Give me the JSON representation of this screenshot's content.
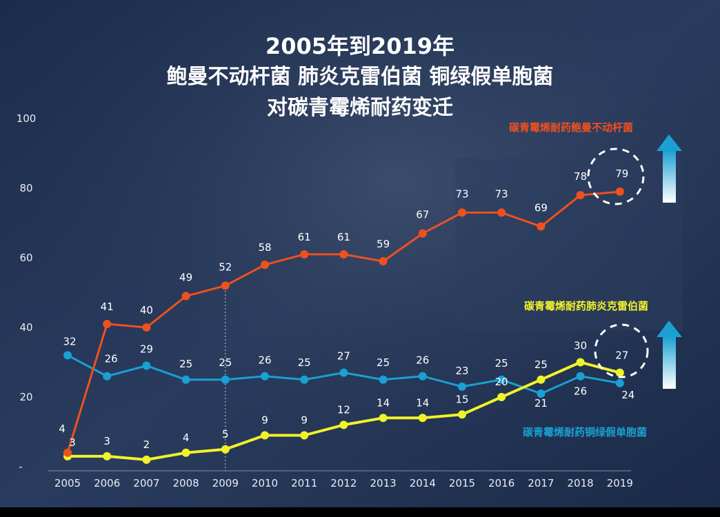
{
  "title": {
    "line1": "2005年到2019年",
    "line2": "鲍曼不动杆菌  肺炎克雷伯菌  铜绿假单胞菌",
    "line3": "对碳青霉烯耐药变迁"
  },
  "colors": {
    "acinetobacter": "#f0501e",
    "klebsiella": "#f2f22a",
    "pseudomonas": "#1aa0d2",
    "title": "#ffffff",
    "axis_text": "#e8edf5"
  },
  "chart_data": {
    "type": "line",
    "categories": [
      "2005",
      "2006",
      "2007",
      "2008",
      "2009",
      "2010",
      "2011",
      "2012",
      "2013",
      "2014",
      "2015",
      "2016",
      "2017",
      "2018",
      "2019"
    ],
    "ylim": [
      0,
      100
    ],
    "yticks": [
      100,
      80,
      60,
      40,
      20
    ],
    "ytick_zero_label": "-",
    "xlabel": "",
    "ylabel": "",
    "series": [
      {
        "name": "碳青霉烯耐药鲍曼不动杆菌",
        "key": "acinetobacter",
        "values": [
          4,
          41,
          40,
          49,
          52,
          58,
          61,
          61,
          59,
          67,
          73,
          73,
          69,
          78,
          79
        ]
      },
      {
        "name": "碳青霉烯耐药肺炎克雷伯菌",
        "key": "klebsiella",
        "values": [
          3,
          3,
          2,
          4,
          5,
          9,
          9,
          12,
          14,
          14,
          15,
          20,
          25,
          30,
          27
        ]
      },
      {
        "name": "碳青霉烯耐药铜绿假单胞菌",
        "key": "pseudomonas",
        "values": [
          32,
          26,
          29,
          25,
          25,
          26,
          25,
          27,
          25,
          26,
          23,
          25,
          21,
          26,
          24
        ]
      }
    ]
  }
}
